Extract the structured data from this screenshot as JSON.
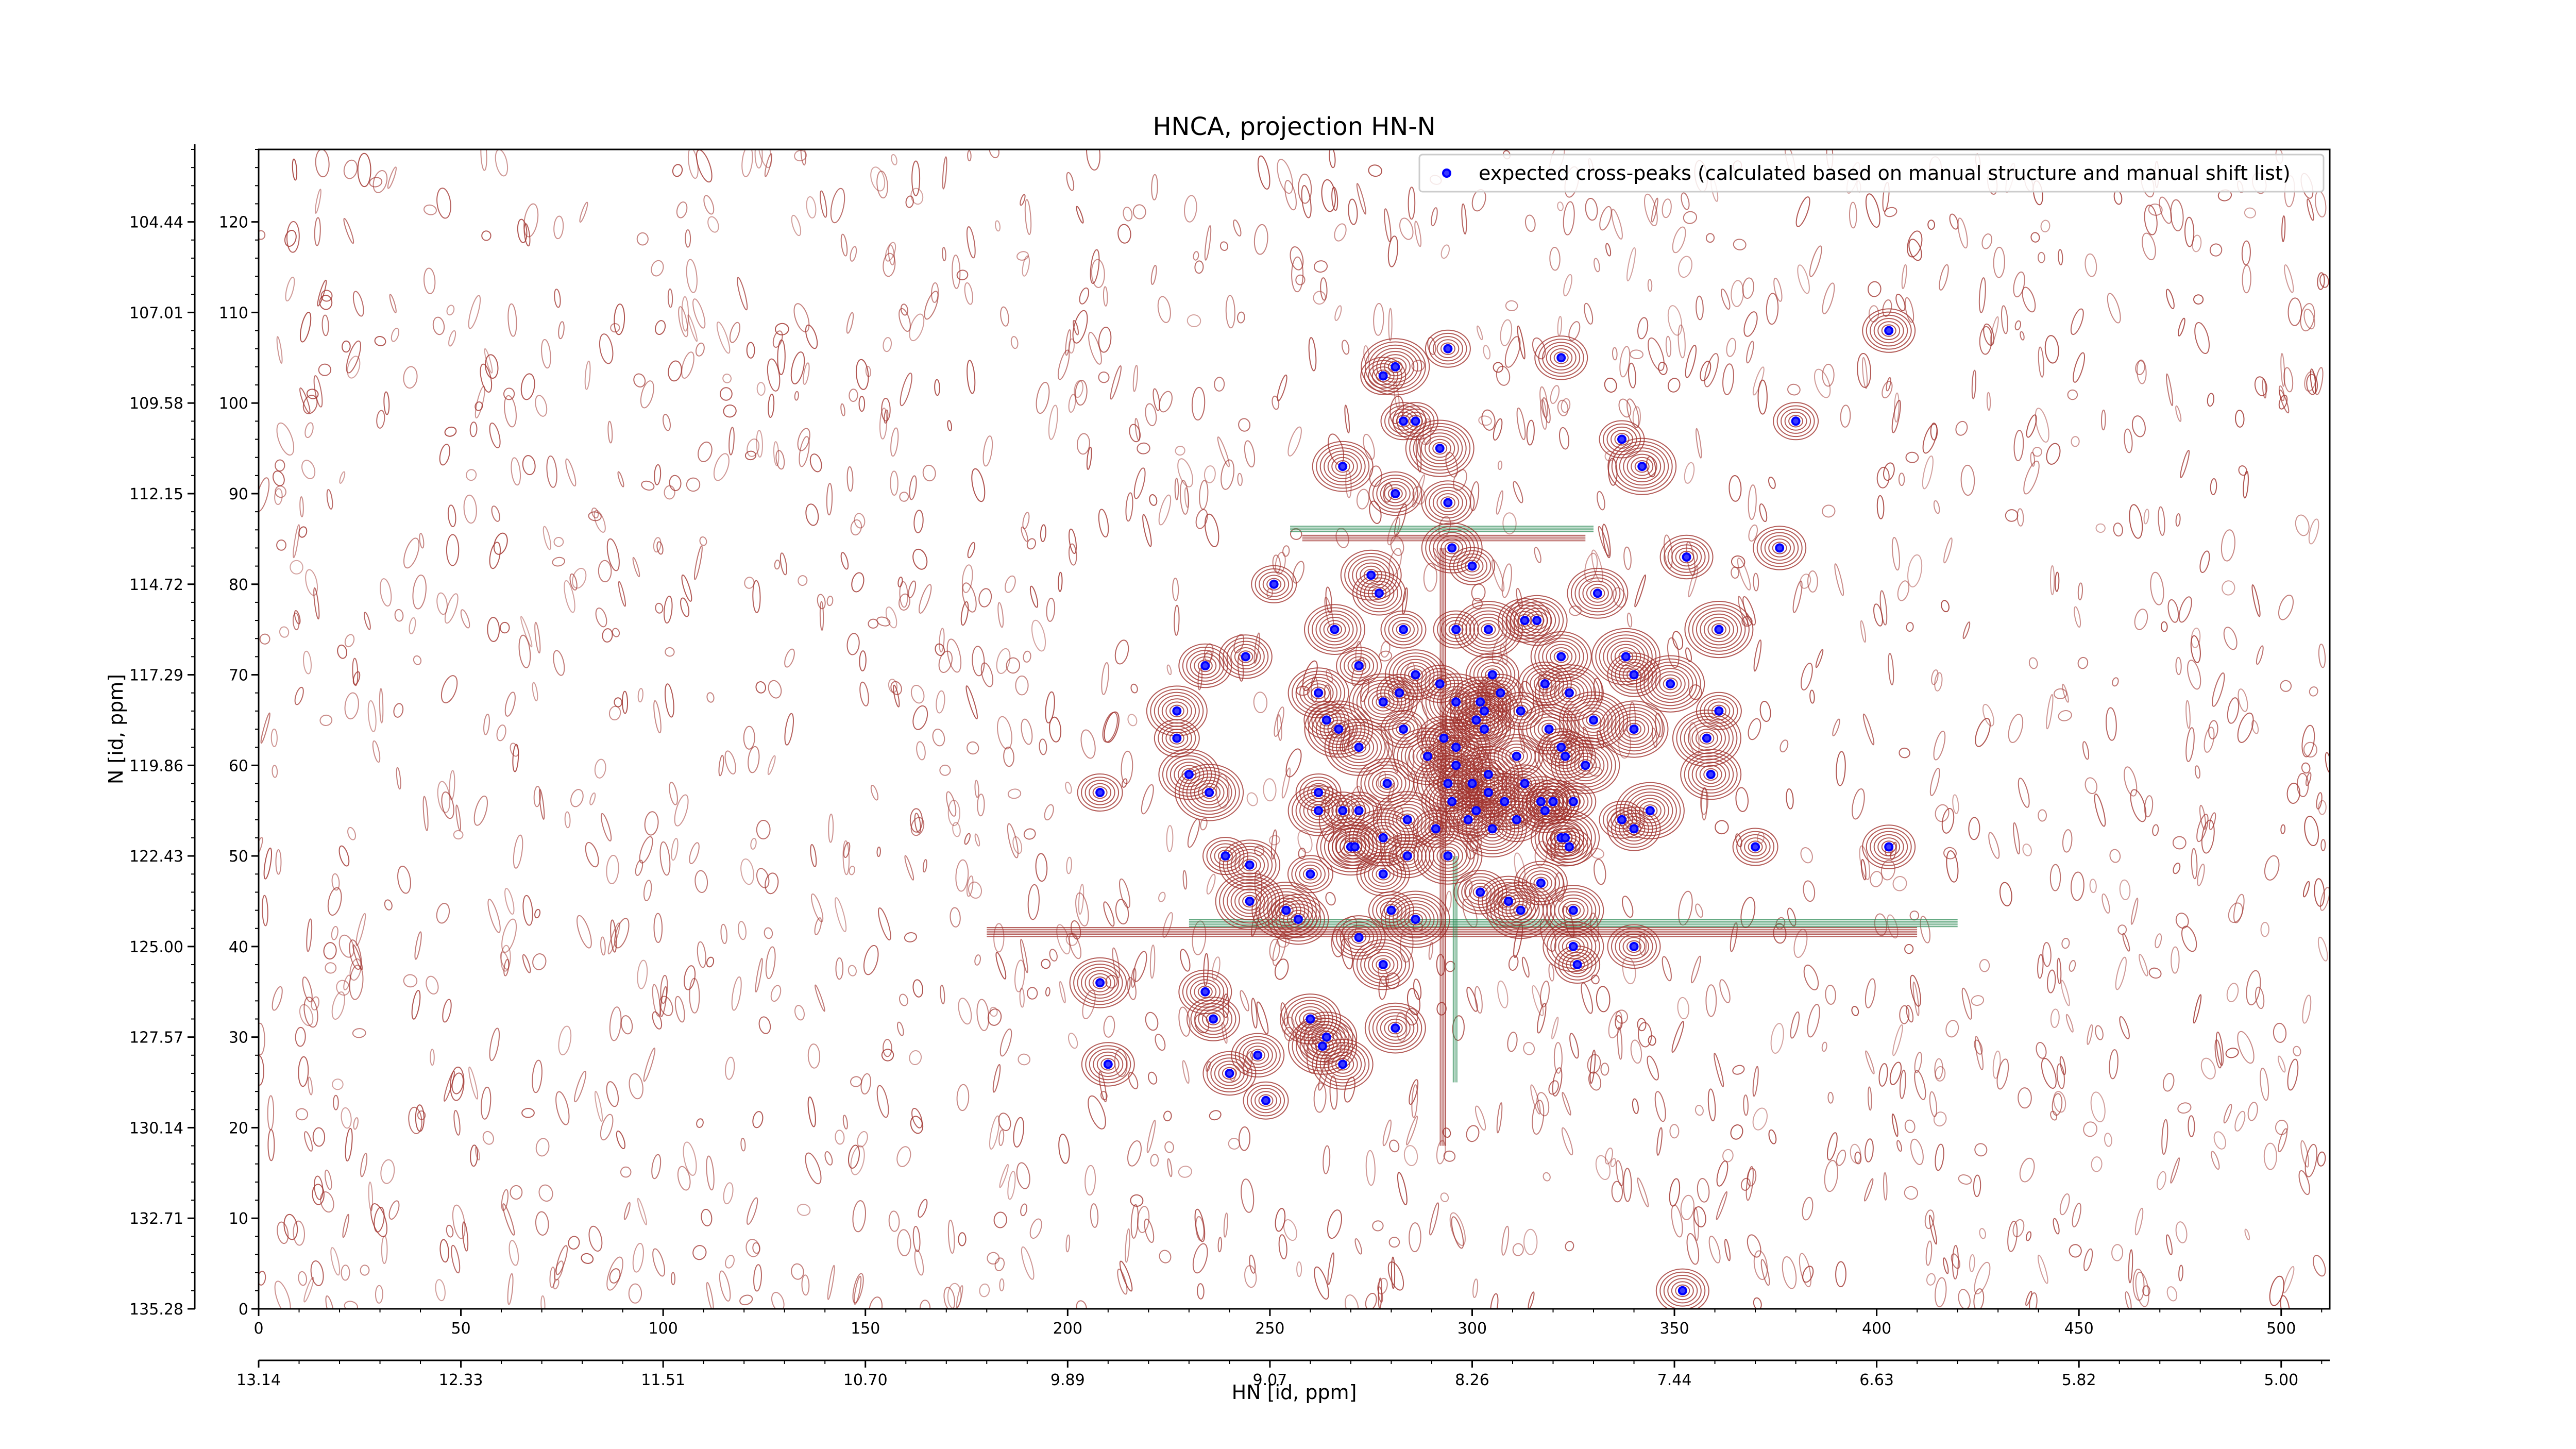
{
  "chart_data": {
    "type": "scatter",
    "title": "HNCA, projection HN-N",
    "xlabel": "HN [id, ppm]",
    "ylabel": "N [id, ppm]",
    "xlim": [
      0,
      512
    ],
    "ylim": [
      0,
      128
    ],
    "x_ticks": [
      "0",
      "50",
      "100",
      "150",
      "200",
      "250",
      "300",
      "350",
      "400",
      "450",
      "500"
    ],
    "x_tick_values": [
      0,
      50,
      100,
      150,
      200,
      250,
      300,
      350,
      400,
      450,
      500
    ],
    "x_secondary_ticks": [
      "13.14",
      "12.33",
      "11.51",
      "10.70",
      "9.89",
      "9.07",
      "8.26",
      "7.44",
      "6.63",
      "5.82",
      "5.00"
    ],
    "y_ticks": [
      "0",
      "10",
      "20",
      "30",
      "40",
      "50",
      "60",
      "70",
      "80",
      "90",
      "100",
      "110",
      "120"
    ],
    "y_tick_values": [
      0,
      10,
      20,
      30,
      40,
      50,
      60,
      70,
      80,
      90,
      100,
      110,
      120
    ],
    "y_secondary_ticks": [
      "135.28",
      "132.71",
      "130.14",
      "127.57",
      "125.00",
      "122.43",
      "119.86",
      "117.29",
      "114.72",
      "112.15",
      "109.58",
      "107.01",
      "104.44"
    ],
    "y_secondary_values": [
      0,
      10,
      20,
      30,
      40,
      50,
      60,
      70,
      80,
      90,
      100,
      110,
      120
    ],
    "legend": {
      "position": "top-right",
      "label": "expected cross-peaks (calculated based on manual structure and manual shift list)"
    },
    "colors": {
      "points": "#0000ff",
      "contour_positive": "#a0322d",
      "contour_negative": "#2e8b57"
    },
    "series": [
      {
        "name": "expected cross-peaks (calculated based on manual structure and manual shift list)",
        "points": [
          [
            278,
            103
          ],
          [
            281,
            104
          ],
          [
            294,
            106
          ],
          [
            322,
            105
          ],
          [
            403,
            108
          ],
          [
            283,
            98
          ],
          [
            286,
            98
          ],
          [
            292,
            95
          ],
          [
            337,
            96
          ],
          [
            380,
            98
          ],
          [
            268,
            93
          ],
          [
            281,
            90
          ],
          [
            294,
            89
          ],
          [
            342,
            93
          ],
          [
            295,
            84
          ],
          [
            300,
            82
          ],
          [
            353,
            83
          ],
          [
            376,
            84
          ],
          [
            251,
            80
          ],
          [
            275,
            81
          ],
          [
            277,
            79
          ],
          [
            331,
            79
          ],
          [
            266,
            75
          ],
          [
            283,
            75
          ],
          [
            296,
            75
          ],
          [
            304,
            75
          ],
          [
            313,
            76
          ],
          [
            316,
            76
          ],
          [
            361,
            75
          ],
          [
            234,
            71
          ],
          [
            244,
            72
          ],
          [
            272,
            71
          ],
          [
            286,
            70
          ],
          [
            292,
            69
          ],
          [
            305,
            70
          ],
          [
            322,
            72
          ],
          [
            338,
            72
          ],
          [
            340,
            70
          ],
          [
            349,
            69
          ],
          [
            262,
            68
          ],
          [
            278,
            67
          ],
          [
            282,
            68
          ],
          [
            296,
            67
          ],
          [
            302,
            67
          ],
          [
            307,
            68
          ],
          [
            318,
            69
          ],
          [
            324,
            68
          ],
          [
            264,
            65
          ],
          [
            283,
            64
          ],
          [
            301,
            65
          ],
          [
            303,
            66
          ],
          [
            312,
            66
          ],
          [
            330,
            65
          ],
          [
            361,
            66
          ],
          [
            227,
            66
          ],
          [
            227,
            63
          ],
          [
            267,
            64
          ],
          [
            272,
            62
          ],
          [
            293,
            63
          ],
          [
            296,
            62
          ],
          [
            303,
            64
          ],
          [
            319,
            64
          ],
          [
            322,
            62
          ],
          [
            340,
            64
          ],
          [
            358,
            63
          ],
          [
            289,
            61
          ],
          [
            296,
            60
          ],
          [
            304,
            59
          ],
          [
            311,
            61
          ],
          [
            323,
            61
          ],
          [
            328,
            60
          ],
          [
            359,
            59
          ],
          [
            230,
            59
          ],
          [
            235,
            57
          ],
          [
            262,
            57
          ],
          [
            272,
            55
          ],
          [
            279,
            58
          ],
          [
            294,
            58
          ],
          [
            300,
            58
          ],
          [
            304,
            57
          ],
          [
            308,
            56
          ],
          [
            313,
            58
          ],
          [
            317,
            56
          ],
          [
            318,
            55
          ],
          [
            320,
            56
          ],
          [
            262,
            55
          ],
          [
            268,
            55
          ],
          [
            295,
            56
          ],
          [
            301,
            55
          ],
          [
            305,
            53
          ],
          [
            311,
            54
          ],
          [
            320,
            56
          ],
          [
            325,
            56
          ],
          [
            337,
            54
          ],
          [
            340,
            53
          ],
          [
            344,
            55
          ],
          [
            208,
            57
          ],
          [
            284,
            54
          ],
          [
            278,
            52
          ],
          [
            291,
            53
          ],
          [
            299,
            54
          ],
          [
            322,
            52
          ],
          [
            324,
            51
          ],
          [
            270,
            51
          ],
          [
            271,
            51
          ],
          [
            284,
            50
          ],
          [
            294,
            50
          ],
          [
            323,
            52
          ],
          [
            370,
            51
          ],
          [
            403,
            51
          ],
          [
            239,
            50
          ],
          [
            245,
            49
          ],
          [
            260,
            48
          ],
          [
            278,
            48
          ],
          [
            245,
            45
          ],
          [
            254,
            44
          ],
          [
            257,
            43
          ],
          [
            280,
            44
          ],
          [
            286,
            43
          ],
          [
            302,
            46
          ],
          [
            309,
            45
          ],
          [
            312,
            44
          ],
          [
            317,
            47
          ],
          [
            325,
            44
          ],
          [
            272,
            41
          ],
          [
            278,
            38
          ],
          [
            325,
            40
          ],
          [
            326,
            38
          ],
          [
            340,
            40
          ],
          [
            208,
            36
          ],
          [
            234,
            35
          ],
          [
            236,
            32
          ],
          [
            260,
            32
          ],
          [
            263,
            29
          ],
          [
            264,
            30
          ],
          [
            268,
            27
          ],
          [
            281,
            31
          ],
          [
            247,
            28
          ],
          [
            240,
            26
          ],
          [
            249,
            23
          ],
          [
            210,
            27
          ],
          [
            352,
            2
          ]
        ]
      }
    ]
  }
}
